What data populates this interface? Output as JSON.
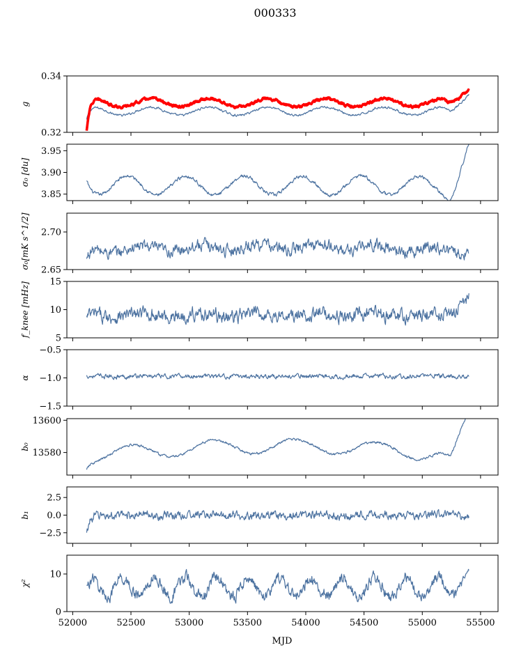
{
  "title": "000333",
  "chart_data": {
    "type": "line",
    "suptitle": "000333",
    "xlabel": "MJD",
    "xlim": [
      51950,
      55650
    ],
    "x_range_data": [
      52120,
      55400
    ],
    "xticks": [
      52000,
      52500,
      53000,
      53500,
      54000,
      54500,
      55000,
      55500
    ],
    "colors": {
      "series": "#4c72a0",
      "highlight": "#ff0000"
    },
    "panels": [
      {
        "id": "g",
        "ylabel": "g",
        "ylim": [
          0.32,
          0.34
        ],
        "yticks": [
          0.32,
          0.34
        ],
        "ytick_labels": [
          "0.32",
          "0.34"
        ],
        "series": [
          {
            "color": "#4c72a0",
            "base": 0.3275,
            "amp": 0.0015,
            "period": 500,
            "phase": 0.15,
            "noise": 0.0003,
            "start": 0.3245,
            "end_rise": 0.0075,
            "dip": -0.0012
          },
          {
            "color": "#ff0000",
            "base": 0.3305,
            "amp": 0.0015,
            "period": 500,
            "phase": 0.15,
            "noise": 0.00035,
            "start": 0.3205,
            "end_rise": 0.006,
            "dip": -0.0012,
            "band": 0.0007
          }
        ]
      },
      {
        "id": "sigma0_du",
        "ylabel": "σ₀ [du]",
        "ylim": [
          3.835,
          3.965
        ],
        "yticks": [
          3.85,
          3.9,
          3.95
        ],
        "ytick_labels": [
          "3.85",
          "3.90",
          "3.95"
        ],
        "series": [
          {
            "color": "#4c72a0",
            "base": 3.87,
            "amp": 0.022,
            "period": 500,
            "phase": 0.55,
            "noise": 0.003,
            "start": 3.88,
            "end_rise": 0.085,
            "dip": -0.02
          }
        ]
      },
      {
        "id": "sigma0_mks",
        "ylabel": "σ₀[mK s^1/2]",
        "ylim": [
          2.65,
          2.725
        ],
        "yticks": [
          2.65,
          2.7
        ],
        "ytick_labels": [
          "2.65",
          "2.70"
        ],
        "series": [
          {
            "color": "#4c72a0",
            "base": 2.675,
            "amp": 0.004,
            "period": 500,
            "phase": 0.3,
            "noise": 0.006,
            "start": 2.662,
            "end_rise": 0.0,
            "dip": 0.0,
            "trend": 0.005
          }
        ]
      },
      {
        "id": "fknee",
        "ylabel": "f_knee [mHz]",
        "ylim": [
          5,
          15
        ],
        "yticks": [
          5,
          10,
          15
        ],
        "ytick_labels": [
          "5",
          "10",
          "15"
        ],
        "series": [
          {
            "color": "#4c72a0",
            "base": 9.0,
            "amp": 0.3,
            "period": 500,
            "phase": 0.3,
            "noise": 0.9,
            "start": 8.5,
            "end_rise": 3.5,
            "dip": 0.0
          }
        ]
      },
      {
        "id": "alpha",
        "ylabel": "α",
        "ylim": [
          -1.5,
          -0.5
        ],
        "yticks": [
          -1.5,
          -1.0,
          -0.5
        ],
        "ytick_labels": [
          "−1.5",
          "−1.0",
          "−0.5"
        ],
        "series": [
          {
            "color": "#4c72a0",
            "base": -0.97,
            "amp": 0.005,
            "period": 500,
            "phase": 0.3,
            "noise": 0.03,
            "start": -0.97,
            "end_rise": 0.0,
            "dip": 0.0
          }
        ]
      },
      {
        "id": "b0",
        "ylabel": "b₀",
        "ylim": [
          13566,
          13601
        ],
        "yticks": [
          13580,
          13600
        ],
        "ytick_labels": [
          "13580",
          "13600"
        ],
        "series": [
          {
            "color": "#4c72a0",
            "base": 13578,
            "amp": 4.5,
            "period": 700,
            "phase": 0.7,
            "noise": 0.6,
            "start": 13569,
            "end_rise": 25,
            "dip": -6,
            "trend": 6
          }
        ]
      },
      {
        "id": "b1",
        "ylabel": "b₁",
        "ylim": [
          -4.0,
          4.0
        ],
        "yticks": [
          -2.5,
          0.0,
          2.5
        ],
        "ytick_labels": [
          "−2.5",
          "0.0",
          "2.5"
        ],
        "series": [
          {
            "color": "#4c72a0",
            "base": 0.0,
            "amp": 0.1,
            "period": 500,
            "phase": 0.3,
            "noise": 0.45,
            "start": -2.8,
            "end_rise": 0.0,
            "dip": 0.0
          }
        ]
      },
      {
        "id": "chi2",
        "ylabel": "χ²",
        "ylim": [
          0,
          15
        ],
        "yticks": [
          0,
          10
        ],
        "ytick_labels": [
          "0",
          "10"
        ],
        "series": [
          {
            "color": "#4c72a0",
            "base": 6.5,
            "amp": 2.5,
            "period": 270,
            "phase": 0.1,
            "noise": 1.2,
            "start": 6.0,
            "end_rise": 1.0,
            "dip": 0.0
          }
        ]
      }
    ]
  }
}
